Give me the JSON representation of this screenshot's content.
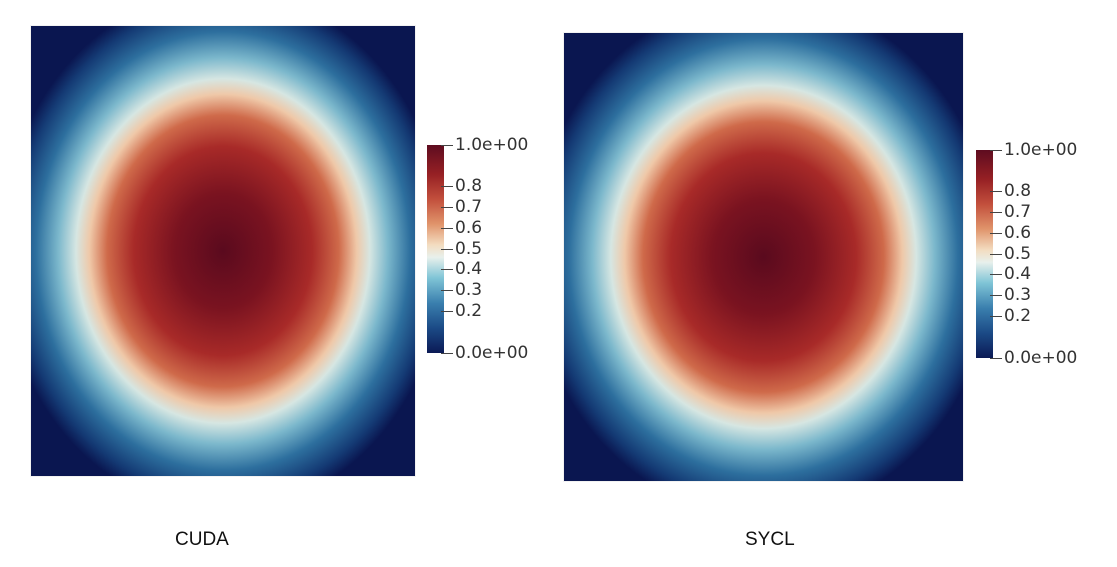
{
  "panels": [
    {
      "caption": "CUDA",
      "colorbar": {
        "ticks": [
          {
            "value": 1.0,
            "label": "1.0e+00"
          },
          {
            "value": 0.8,
            "label": "0.8"
          },
          {
            "value": 0.7,
            "label": "0.7"
          },
          {
            "value": 0.6,
            "label": "0.6"
          },
          {
            "value": 0.5,
            "label": "0.5"
          },
          {
            "value": 0.4,
            "label": "0.4"
          },
          {
            "value": 0.3,
            "label": "0.3"
          },
          {
            "value": 0.2,
            "label": "0.2"
          },
          {
            "value": 0.0,
            "label": "0.0e+00"
          }
        ]
      }
    },
    {
      "caption": "SYCL",
      "colorbar": {
        "ticks": [
          {
            "value": 1.0,
            "label": "1.0e+00"
          },
          {
            "value": 0.8,
            "label": "0.8"
          },
          {
            "value": 0.7,
            "label": "0.7"
          },
          {
            "value": 0.6,
            "label": "0.6"
          },
          {
            "value": 0.5,
            "label": "0.5"
          },
          {
            "value": 0.4,
            "label": "0.4"
          },
          {
            "value": 0.3,
            "label": "0.3"
          },
          {
            "value": 0.2,
            "label": "0.2"
          },
          {
            "value": 0.0,
            "label": "0.0e+00"
          }
        ]
      }
    }
  ],
  "colormap": {
    "name": "rainbow-desaturated-diverging",
    "low": "#0b1a55",
    "mid": "#f3dcc0",
    "high": "#5e0c20"
  }
}
